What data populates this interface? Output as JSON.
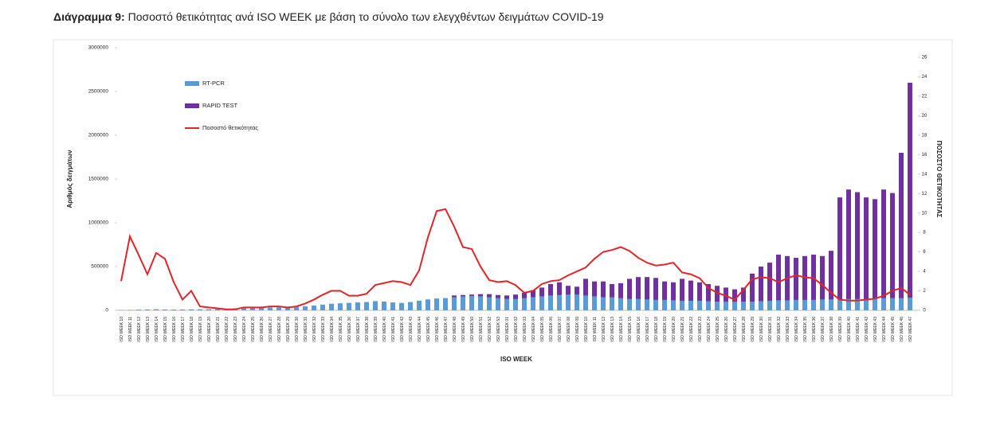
{
  "chart_data": {
    "type": "bar",
    "title_prefix": "Διάγραμμα 9:",
    "title": "Ποσοστό θετικότητας ανά ISO WEEK με βάση το σύνολο των ελεγχθέντων δειγμάτων COVID-19",
    "x_label": "ISO WEEK",
    "y_label": "Αριθμός δειγμάτων",
    "y2_label": "ΠΟΣΟΣΤΟ ΘΕΤΙΚΟΤΗΤΑΣ",
    "ylim": [
      0,
      3000000
    ],
    "yticks": [
      0,
      500000,
      1000000,
      1500000,
      2000000,
      2500000,
      3000000
    ],
    "y2lim": [
      0,
      26
    ],
    "y2ticks": [
      0,
      2,
      4,
      6,
      8,
      10,
      12,
      14,
      16,
      18,
      20,
      22,
      24,
      26
    ],
    "categories": [
      "ISO WEEK 10",
      "ISO WEEK 11",
      "ISO WEEK 12",
      "ISO WEEK 13",
      "ISO WEEK 14",
      "ISO WEEK 15",
      "ISO WEEK 16",
      "ISO WEEK 17",
      "ISO WEEK 18",
      "ISO WEEK 19",
      "ISO WEEK 20",
      "ISO WEEK 21",
      "ISO WEEK 22",
      "ISO WEEK 23",
      "ISO WEEK 24",
      "ISO WEEK 25",
      "ISO WEEK 26",
      "ISO WEEK 27",
      "ISO WEEK 28",
      "ISO WEEK 29",
      "ISO WEEK 30",
      "ISO WEEK 31",
      "ISO WEEK 32",
      "ISO WEEK 33",
      "ISO WEEK 34",
      "ISO WEEK 35",
      "ISO WEEK 36",
      "ISO WEEK 37",
      "ISO WEEK 38",
      "ISO WEEK 39",
      "ISO WEEK 40",
      "ISO WEEK 41",
      "ISO WEEK 42",
      "ISO WEEK 43",
      "ISO WEEK 44",
      "ISO WEEK 45",
      "ISO WEEK 46",
      "ISO WEEK 47",
      "ISO WEEK 48",
      "ISO WEEK 49",
      "ISO WEEK 50",
      "ISO WEEK 51",
      "ISO WEEK 52",
      "ISO WEEK 53",
      "ISO WEEK 01",
      "ISO WEEK 02",
      "ISO WEEK 03",
      "ISO WEEK 04",
      "ISO WEEK 05",
      "ISO WEEK 06",
      "ISO WEEK 07",
      "ISO WEEK 08",
      "ISO WEEK 09",
      "ISO WEEK 10",
      "ISO WEEK 11",
      "ISO WEEK 12",
      "ISO WEEK 13",
      "ISO WEEK 14",
      "ISO WEEK 15",
      "ISO WEEK 16",
      "ISO WEEK 17",
      "ISO WEEK 18",
      "ISO WEEK 19",
      "ISO WEEK 20",
      "ISO WEEK 21",
      "ISO WEEK 22",
      "ISO WEEK 23",
      "ISO WEEK 24",
      "ISO WEEK 25",
      "ISO WEEK 26",
      "ISO WEEK 27",
      "ISO WEEK 28",
      "ISO WEEK 29",
      "ISO WEEK 30",
      "ISO WEEK 31",
      "ISO WEEK 32",
      "ISO WEEK 33",
      "ISO WEEK 34",
      "ISO WEEK 35",
      "ISO WEEK 36",
      "ISO WEEK 37",
      "ISO WEEK 38",
      "ISO WEEK 39",
      "ISO WEEK 40",
      "ISO WEEK 41",
      "ISO WEEK 42",
      "ISO WEEK 43",
      "ISO WEEK 44",
      "ISO WEEK 45",
      "ISO WEEK 46",
      "ISO WEEK 47"
    ],
    "series": [
      {
        "name": "RAPID TEST",
        "type": "bar",
        "color": "#7030a0",
        "values": [
          0,
          0,
          0,
          0,
          0,
          0,
          0,
          0,
          0,
          0,
          0,
          0,
          0,
          0,
          0,
          0,
          0,
          0,
          0,
          0,
          0,
          0,
          0,
          0,
          0,
          0,
          0,
          0,
          0,
          0,
          0,
          0,
          0,
          0,
          0,
          0,
          0,
          0,
          170000,
          175000,
          180000,
          185000,
          185000,
          175000,
          170000,
          180000,
          200000,
          230000,
          260000,
          300000,
          320000,
          280000,
          270000,
          360000,
          330000,
          330000,
          300000,
          310000,
          360000,
          380000,
          380000,
          370000,
          330000,
          320000,
          360000,
          340000,
          320000,
          300000,
          280000,
          260000,
          240000,
          260000,
          420000,
          500000,
          545000,
          636000,
          620000,
          600000,
          620000,
          636000,
          620000,
          680000,
          1290000,
          1380000,
          1350000,
          1290000,
          1270000,
          1380000,
          1340000,
          1800000,
          2600000
        ]
      },
      {
        "name": "RT-PCR",
        "type": "bar",
        "color": "#5b9bd5",
        "values": [
          3000,
          5000,
          8000,
          10000,
          12000,
          10000,
          9000,
          10000,
          11000,
          12000,
          13000,
          15000,
          18000,
          22000,
          25000,
          28000,
          30000,
          33000,
          35000,
          38000,
          40000,
          45000,
          55000,
          65000,
          75000,
          80000,
          85000,
          90000,
          95000,
          105000,
          100000,
          90000,
          85000,
          95000,
          110000,
          125000,
          135000,
          140000,
          150000,
          160000,
          165000,
          160000,
          150000,
          140000,
          130000,
          130000,
          140000,
          150000,
          160000,
          170000,
          175000,
          180000,
          180000,
          170000,
          160000,
          150000,
          150000,
          140000,
          130000,
          130000,
          125000,
          120000,
          120000,
          115000,
          110000,
          110000,
          110000,
          105000,
          100000,
          100000,
          100000,
          100000,
          100000,
          105000,
          110000,
          115000,
          115000,
          120000,
          120000,
          120000,
          125000,
          125000,
          130000,
          130000,
          130000,
          130000,
          135000,
          140000,
          140000,
          140000,
          145000
        ]
      },
      {
        "name": "Ποσοστό θετικότητας",
        "type": "line",
        "axis": "y2",
        "color": "#e0262b",
        "values": [
          3.0,
          7.6,
          5.7,
          3.7,
          5.9,
          5.3,
          2.9,
          1.1,
          2.0,
          0.4,
          0.3,
          0.2,
          0.1,
          0.1,
          0.3,
          0.3,
          0.3,
          0.4,
          0.4,
          0.3,
          0.4,
          0.7,
          1.1,
          1.6,
          2.0,
          2.0,
          1.5,
          1.5,
          1.7,
          2.6,
          2.8,
          3.0,
          2.9,
          2.6,
          4.1,
          7.5,
          10.2,
          10.4,
          8.6,
          6.5,
          6.3,
          4.5,
          3.1,
          2.9,
          3.0,
          2.6,
          1.8,
          2.0,
          2.7,
          3.0,
          3.1,
          3.6,
          4.0,
          4.4,
          5.3,
          6.0,
          6.2,
          6.5,
          6.1,
          5.4,
          4.9,
          4.6,
          4.7,
          4.9,
          3.9,
          3.7,
          3.3,
          2.3,
          1.8,
          1.5,
          1.1,
          2.1,
          3.2,
          3.4,
          3.3,
          2.9,
          3.3,
          3.6,
          3.4,
          3.3,
          2.6,
          1.8,
          1.1,
          1.0,
          1.0,
          1.1,
          1.2,
          1.5,
          2.0,
          2.3,
          1.6
        ]
      }
    ]
  }
}
